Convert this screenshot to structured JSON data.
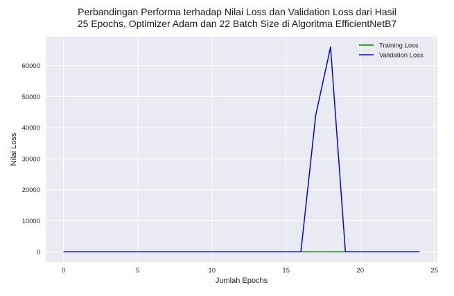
{
  "chart_data": {
    "type": "line",
    "title_lines": [
      "Perbandingan Performa terhadap Nilai Loss dan Validation Loss dari Hasil",
      "25 Epochs, Optimizer Adam dan 22 Batch Size di Algoritma EfficientNetB7"
    ],
    "xlabel": "Jumlah Epochs",
    "ylabel": "Nilai Loss",
    "xlim": [
      -1.2,
      25.2
    ],
    "ylim": [
      -3300,
      69300
    ],
    "xticks": [
      0,
      5,
      10,
      15,
      20,
      25
    ],
    "yticks": [
      0,
      10000,
      20000,
      30000,
      40000,
      50000,
      60000
    ],
    "grid": true,
    "legend_position": "top-right",
    "x": [
      0,
      1,
      2,
      3,
      4,
      5,
      6,
      7,
      8,
      9,
      10,
      11,
      12,
      13,
      14,
      15,
      16,
      17,
      18,
      19,
      20,
      21,
      22,
      23,
      24
    ],
    "series": [
      {
        "name": "Training Loss",
        "color": "#008000",
        "values": [
          0,
          0,
          0,
          0,
          0,
          0,
          0,
          0,
          0,
          0,
          0,
          0,
          0,
          0,
          0,
          0,
          0,
          0,
          0,
          0,
          0,
          0,
          0,
          0,
          0
        ]
      },
      {
        "name": "Validation Loss",
        "color": "#0000ff",
        "values": [
          0,
          0,
          0,
          0,
          0,
          0,
          0,
          0,
          0,
          0,
          0,
          0,
          0,
          0,
          0,
          0,
          0,
          44000,
          66000,
          0,
          0,
          0,
          0,
          0,
          0
        ]
      }
    ],
    "colors": {
      "plot_background": "#eaeaf2",
      "grid": "#ffffff"
    }
  }
}
